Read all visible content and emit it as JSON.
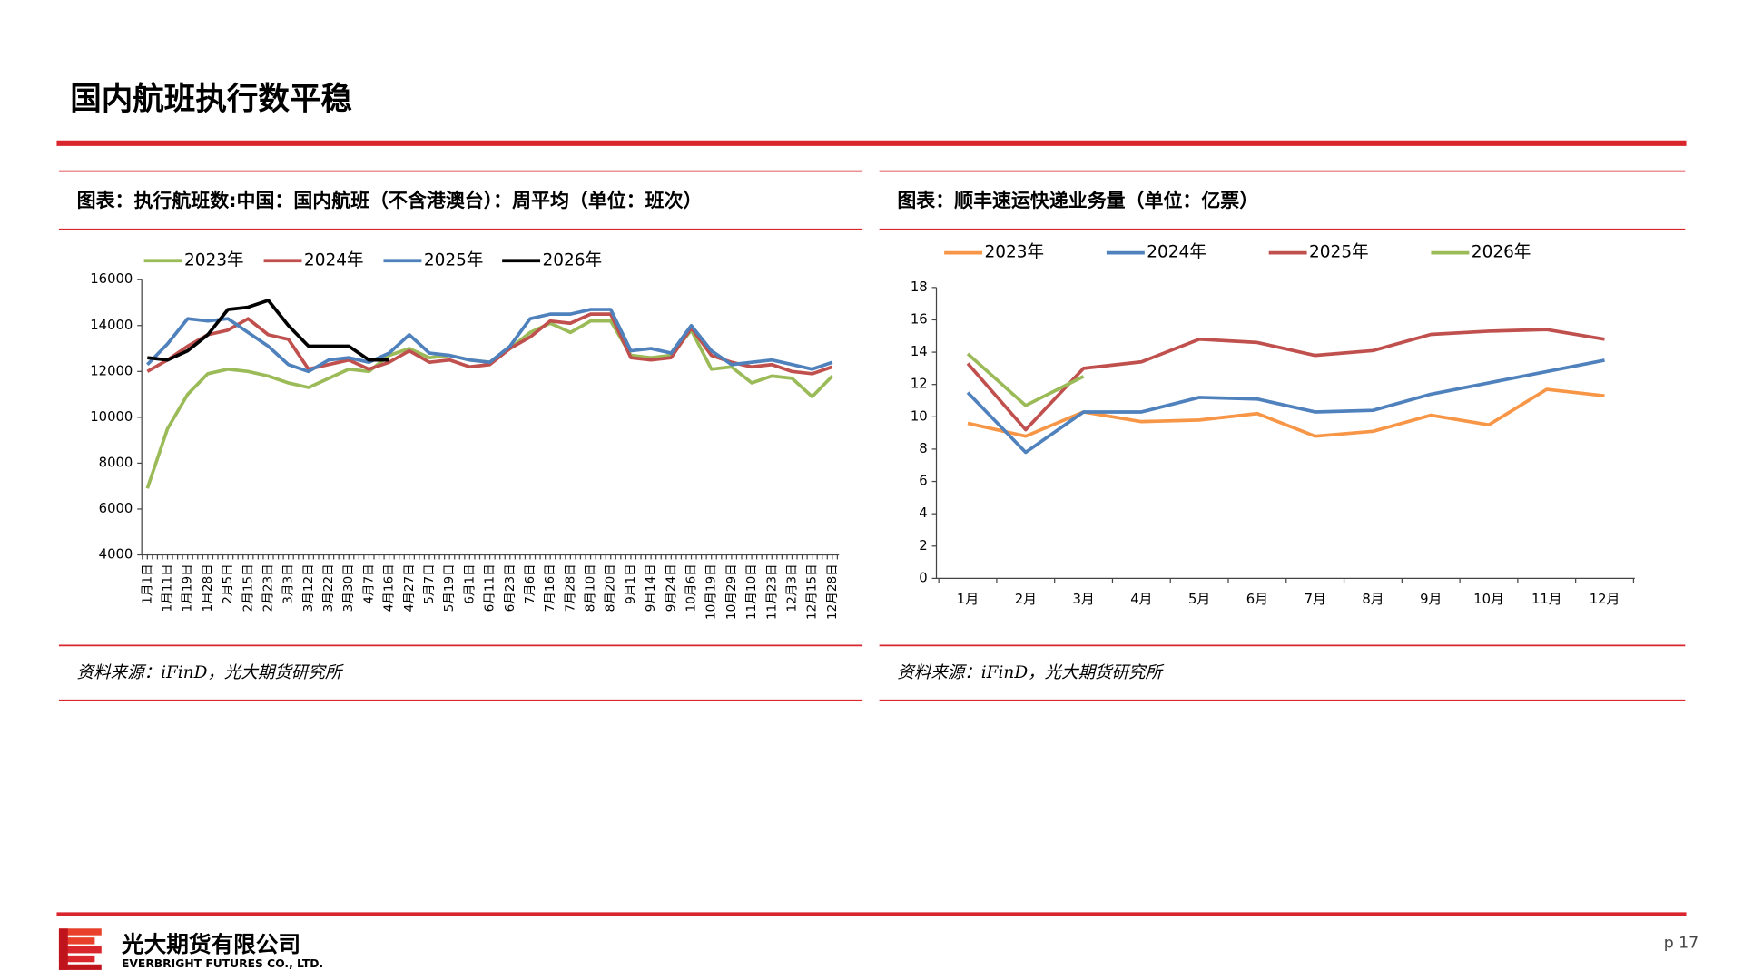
{
  "header": {
    "title": "国内航班执行数平稳"
  },
  "chart_data": [
    {
      "type": "line",
      "title": "图表：执行航班数:中国：国内航班（不含港澳台）：周平均（单位：班次）",
      "source": "资料来源：iFinD，光大期货研究所",
      "categories": [
        "1月1日",
        "1月11日",
        "1月19日",
        "1月28日",
        "2月5日",
        "2月15日",
        "2月23日",
        "3月3日",
        "3月12日",
        "3月22日",
        "3月30日",
        "4月7日",
        "4月16日",
        "4月27日",
        "5月7日",
        "5月19日",
        "6月1日",
        "6月11日",
        "6月23日",
        "7月6日",
        "7月16日",
        "7月28日",
        "8月10日",
        "8月20日",
        "9月1日",
        "9月14日",
        "9月24日",
        "10月6日",
        "10月19日",
        "10月29日",
        "11月10日",
        "11月23日",
        "12月3日",
        "12月15日",
        "12月28日"
      ],
      "ylim": [
        4000,
        16000
      ],
      "yticks": [
        4000,
        6000,
        8000,
        10000,
        12000,
        14000,
        16000
      ],
      "grid": false,
      "legend": "top",
      "series": [
        {
          "name": "2023年",
          "color": "#9bbb59",
          "values": [
            6900,
            9500,
            11000,
            11900,
            12100,
            12000,
            11800,
            11500,
            11300,
            11700,
            12100,
            12000,
            12700,
            13000,
            12600,
            12700,
            12500,
            12400,
            13000,
            13700,
            14100,
            13700,
            14200,
            14200,
            12700,
            12600,
            12700,
            13800,
            12100,
            12200,
            11500,
            11800,
            11700,
            10900,
            11800
          ]
        },
        {
          "name": "2024年",
          "color": "#c0504d",
          "values": [
            12000,
            12500,
            13100,
            13600,
            13800,
            14300,
            13600,
            13400,
            12100,
            12300,
            12500,
            12100,
            12400,
            12900,
            12400,
            12500,
            12200,
            12300,
            13000,
            13500,
            14200,
            14100,
            14500,
            14500,
            12600,
            12500,
            12600,
            13900,
            12700,
            12400,
            12200,
            12300,
            12000,
            11900,
            12200
          ]
        },
        {
          "name": "2025年",
          "color": "#4f81bd",
          "values": [
            12300,
            13200,
            14300,
            14200,
            14300,
            13700,
            13100,
            12300,
            12000,
            12500,
            12600,
            12400,
            12800,
            13600,
            12800,
            12700,
            12500,
            12400,
            13100,
            14300,
            14500,
            14500,
            14700,
            14700,
            12900,
            13000,
            12800,
            14000,
            12900,
            12300,
            12400,
            12500,
            12300,
            12100,
            12400
          ]
        },
        {
          "name": "2026年",
          "color": "#000000",
          "values": [
            12600,
            12500,
            12900,
            13600,
            14700,
            14800,
            15100,
            14000,
            13100,
            13100,
            13100,
            12500,
            12500,
            null,
            null,
            null,
            null,
            null,
            null,
            null,
            null,
            null,
            null,
            null,
            null,
            null,
            null,
            null,
            null,
            null,
            null,
            null,
            null,
            null,
            null
          ]
        }
      ]
    },
    {
      "type": "line",
      "title": "图表：顺丰速运快递业务量（单位：亿票）",
      "source": "资料来源：iFinD，光大期货研究所",
      "categories": [
        "1月",
        "2月",
        "3月",
        "4月",
        "5月",
        "6月",
        "7月",
        "8月",
        "9月",
        "10月",
        "11月",
        "12月"
      ],
      "ylim": [
        0,
        18
      ],
      "yticks": [
        0,
        2,
        4,
        6,
        8,
        10,
        12,
        14,
        16,
        18
      ],
      "grid": false,
      "legend": "top",
      "series": [
        {
          "name": "2023年",
          "color": "#f79646",
          "values": [
            9.6,
            8.8,
            10.3,
            9.7,
            9.8,
            10.2,
            8.8,
            9.1,
            10.1,
            9.5,
            11.7,
            11.3
          ]
        },
        {
          "name": "2024年",
          "color": "#4f81bd",
          "values": [
            11.5,
            7.8,
            10.3,
            10.3,
            11.2,
            11.1,
            10.3,
            10.4,
            11.4,
            12.1,
            12.8,
            13.5
          ]
        },
        {
          "name": "2025年",
          "color": "#c0504d",
          "values": [
            13.3,
            9.2,
            13.0,
            13.4,
            14.8,
            14.6,
            13.8,
            14.1,
            15.1,
            15.3,
            15.4,
            14.8
          ]
        },
        {
          "name": "2026年",
          "color": "#9bbb59",
          "values": [
            13.9,
            10.7,
            12.5,
            null,
            null,
            null,
            null,
            null,
            null,
            null,
            null,
            null
          ]
        }
      ]
    }
  ],
  "footer": {
    "company": "光大期货有限公司",
    "company_en": "EVERBRIGHT FUTURES CO., LTD.",
    "page": "p 17"
  }
}
